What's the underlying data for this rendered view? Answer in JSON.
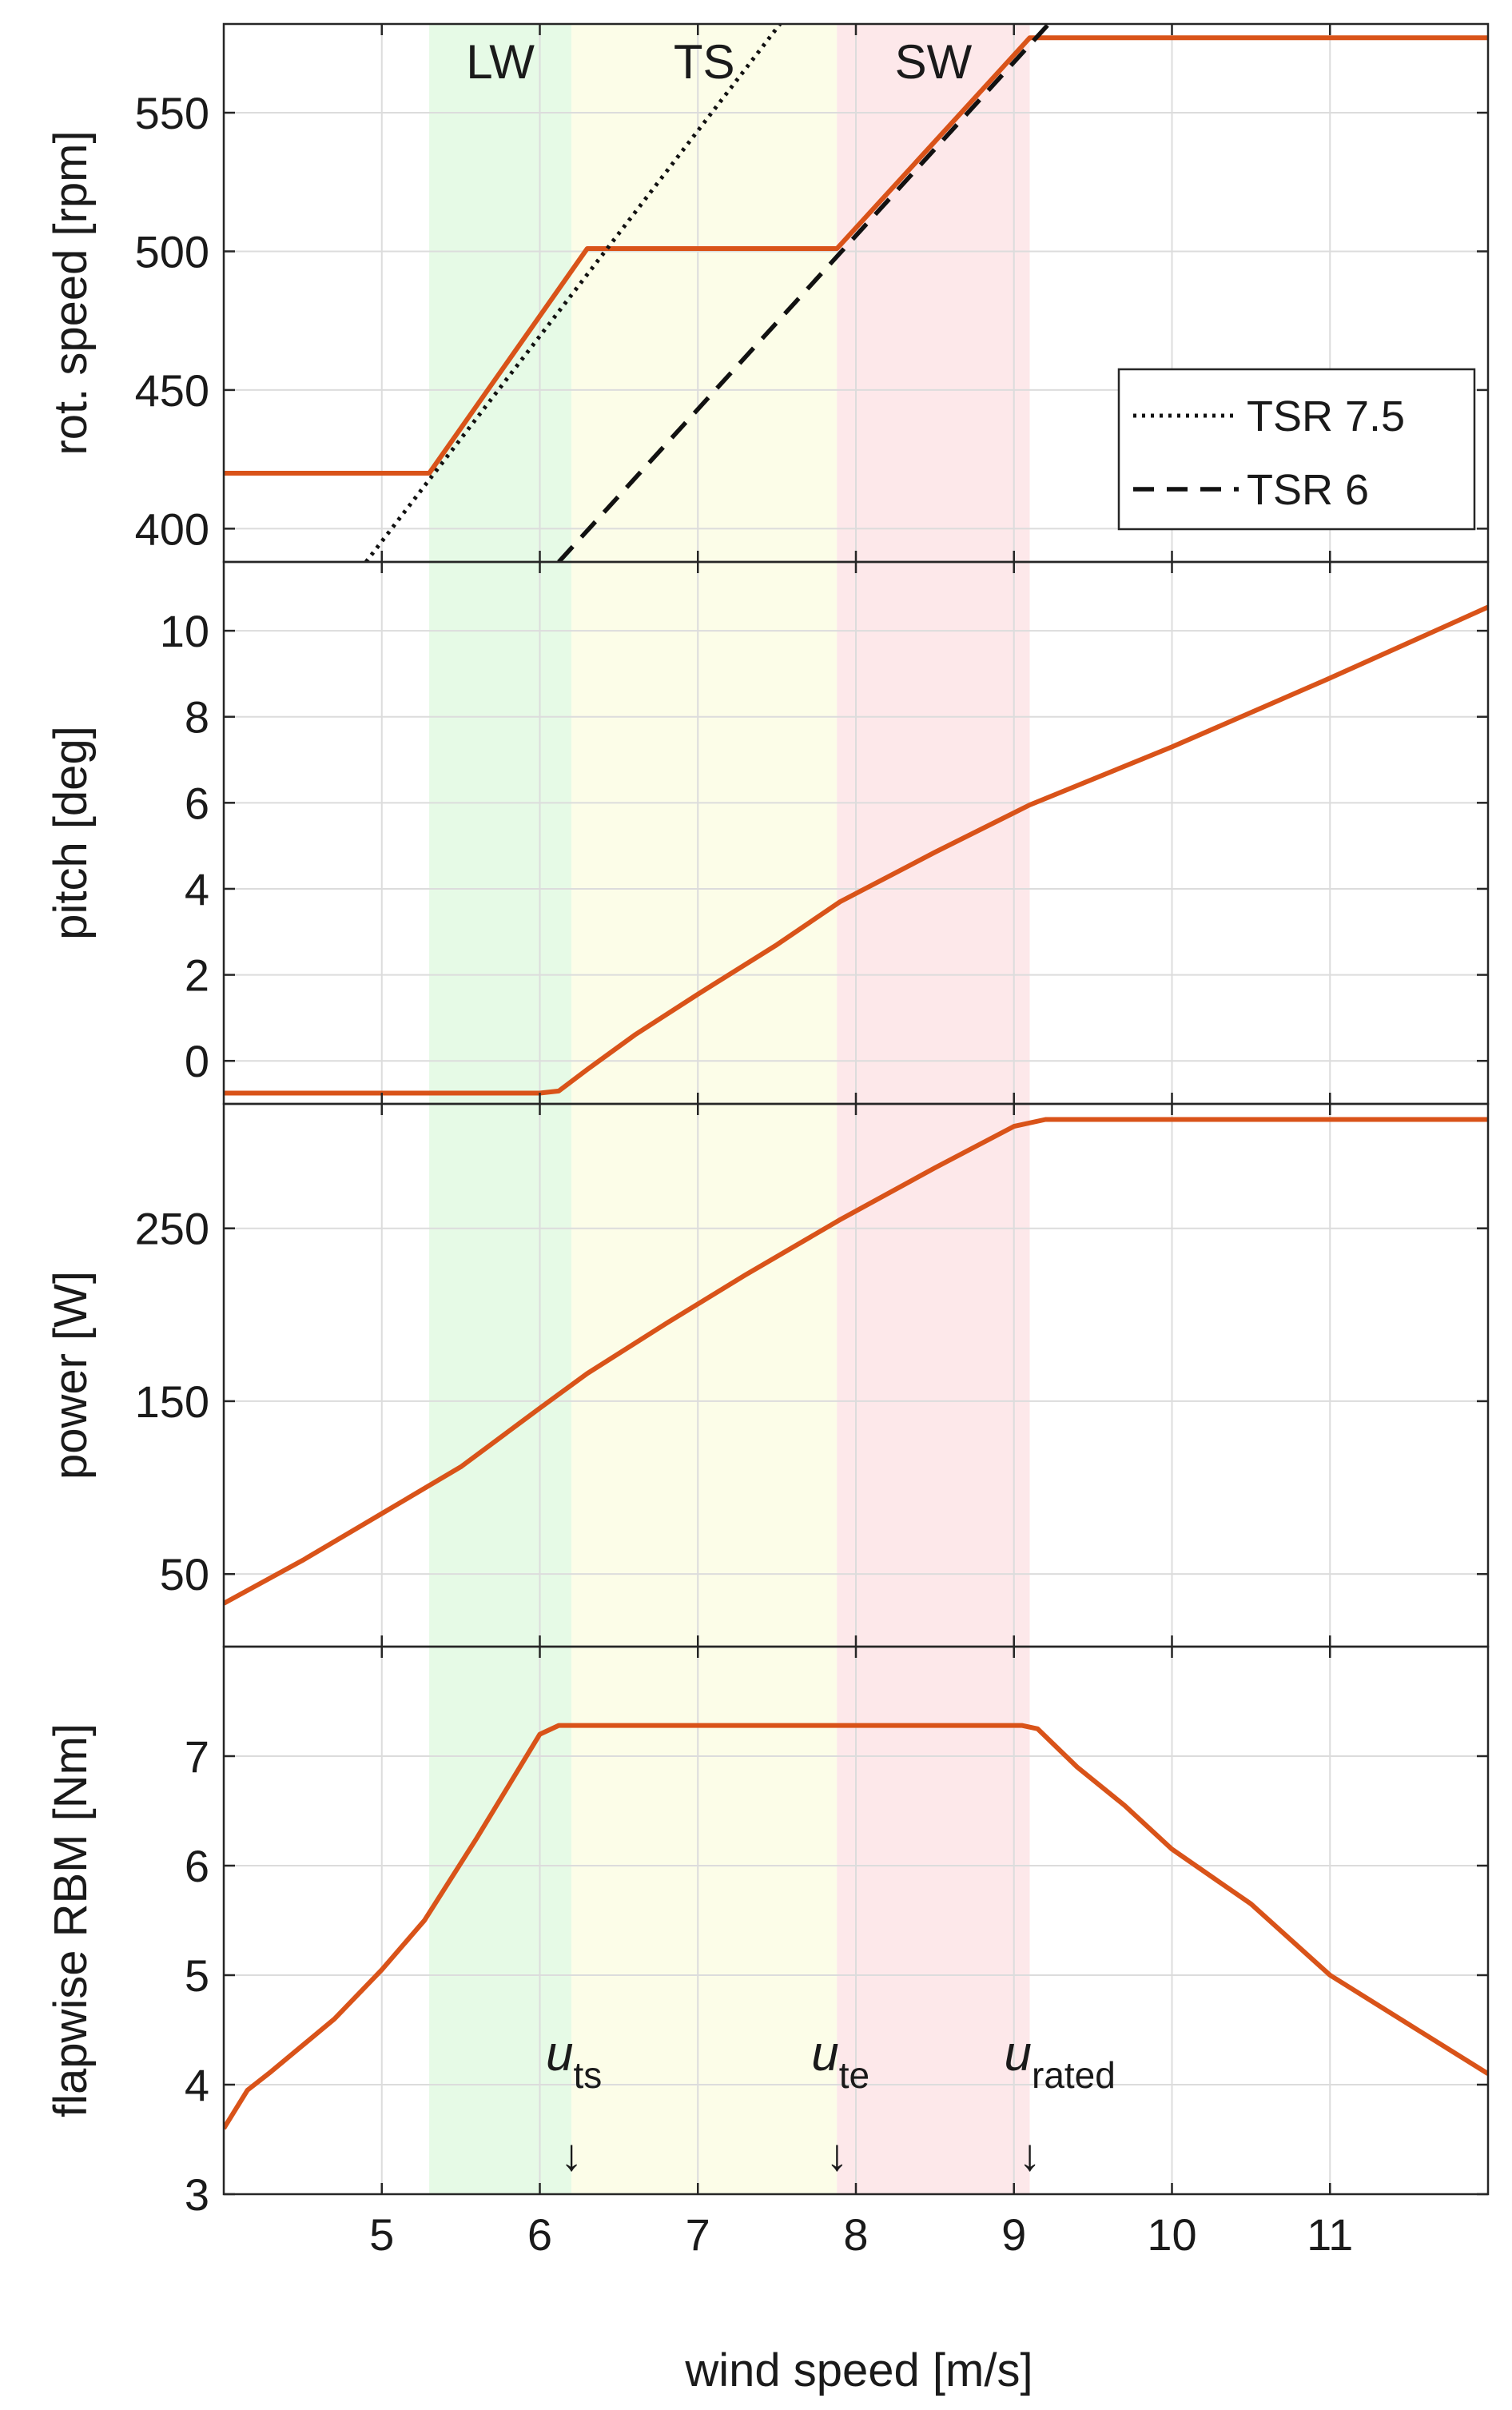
{
  "chart_data": {
    "type": "line",
    "x_axis": {
      "label": "wind speed [m/s]",
      "xlim": [
        4,
        12
      ],
      "ticks": [
        5,
        6,
        7,
        8,
        9,
        10,
        11
      ],
      "tick_labels": [
        "5",
        "6",
        "7",
        "8",
        "9",
        "10",
        "11"
      ]
    },
    "grid": true,
    "line_color": "#D95319",
    "regions": [
      {
        "label": "LW",
        "from": 5.3,
        "to": 6.2,
        "color": "#E6FAE6"
      },
      {
        "label": "TS",
        "from": 6.2,
        "to": 7.88,
        "color": "#FCFDE8"
      },
      {
        "label": "SW",
        "from": 7.88,
        "to": 9.1,
        "color": "#FDE8EA"
      }
    ],
    "markers": [
      {
        "base": "u",
        "sub": "ts",
        "x": 6.2
      },
      {
        "base": "u",
        "sub": "te",
        "x": 7.88
      },
      {
        "base": "u",
        "sub": "rated",
        "x": 9.1
      }
    ],
    "arrow_glyph": "↓",
    "panels": [
      {
        "id": "rotor-speed",
        "ylabel": "rot. speed [rpm]",
        "ylim": [
          388,
          582
        ],
        "yticks": [
          400,
          450,
          500,
          550
        ],
        "ytick_labels": [
          "400",
          "450",
          "500",
          "550"
        ],
        "series": [
          {
            "kind": "solid",
            "x": [
              4,
              5.3,
              6.3,
              7.88,
              9.1,
              12
            ],
            "y": [
              420,
              420,
              501,
              501,
              577,
              577
            ]
          },
          {
            "name": "TSR 7.5",
            "kind": "dotted",
            "x": [
              4.9,
              7.52
            ],
            "y": [
              388,
              582
            ]
          },
          {
            "name": "TSR 6",
            "kind": "dashed",
            "x": [
              6.12,
              9.22
            ],
            "y": [
              388,
              582
            ]
          }
        ],
        "legend": {
          "position": "lower-right",
          "entries": [
            "TSR 7.5",
            "TSR 6"
          ]
        }
      },
      {
        "id": "pitch",
        "ylabel": "pitch [deg]",
        "ylim": [
          -1,
          11.6
        ],
        "yticks": [
          0,
          2,
          4,
          6,
          8,
          10
        ],
        "ytick_labels": [
          "0",
          "2",
          "4",
          "6",
          "8",
          "10"
        ],
        "series": [
          {
            "kind": "solid",
            "x": [
              4,
              6.0,
              6.12,
              6.3,
              6.6,
              7.0,
              7.5,
              7.9,
              8.5,
              9.1,
              10.0,
              11.0,
              12.0
            ],
            "y": [
              -0.75,
              -0.75,
              -0.7,
              -0.2,
              0.6,
              1.55,
              2.7,
              3.7,
              4.85,
              5.95,
              7.3,
              8.9,
              10.55
            ]
          }
        ]
      },
      {
        "id": "power",
        "ylabel": "power [W]",
        "ylim": [
          8,
          322
        ],
        "yticks": [
          50,
          150,
          250
        ],
        "ytick_labels": [
          "50",
          "150",
          "250"
        ],
        "series": [
          {
            "kind": "solid",
            "x": [
              4,
              4.5,
              5.0,
              5.5,
              6.0,
              6.3,
              6.8,
              7.3,
              7.9,
              8.5,
              9.0,
              9.2,
              12.0
            ],
            "y": [
              33,
              58,
              85,
              112,
              146,
              166,
              195,
              223,
              255,
              285,
              309,
              313,
              313
            ]
          }
        ]
      },
      {
        "id": "flapwise-rbm",
        "ylabel": "flapwise RBM [Nm]",
        "ylim": [
          3,
          8.0
        ],
        "yticks": [
          3,
          4,
          5,
          6,
          7
        ],
        "ytick_labels": [
          "3",
          "4",
          "5",
          "6",
          "7"
        ],
        "series": [
          {
            "kind": "solid",
            "x": [
              4,
              4.15,
              4.3,
              4.7,
              5.0,
              5.27,
              5.6,
              6.0,
              6.12,
              9.05,
              9.15,
              9.4,
              9.7,
              10.0,
              10.5,
              11.0,
              11.5,
              12.0
            ],
            "y": [
              3.6,
              3.95,
              4.12,
              4.6,
              5.05,
              5.5,
              6.25,
              7.2,
              7.28,
              7.28,
              7.25,
              6.9,
              6.55,
              6.15,
              5.65,
              5.0,
              4.55,
              4.1
            ]
          }
        ]
      }
    ]
  }
}
